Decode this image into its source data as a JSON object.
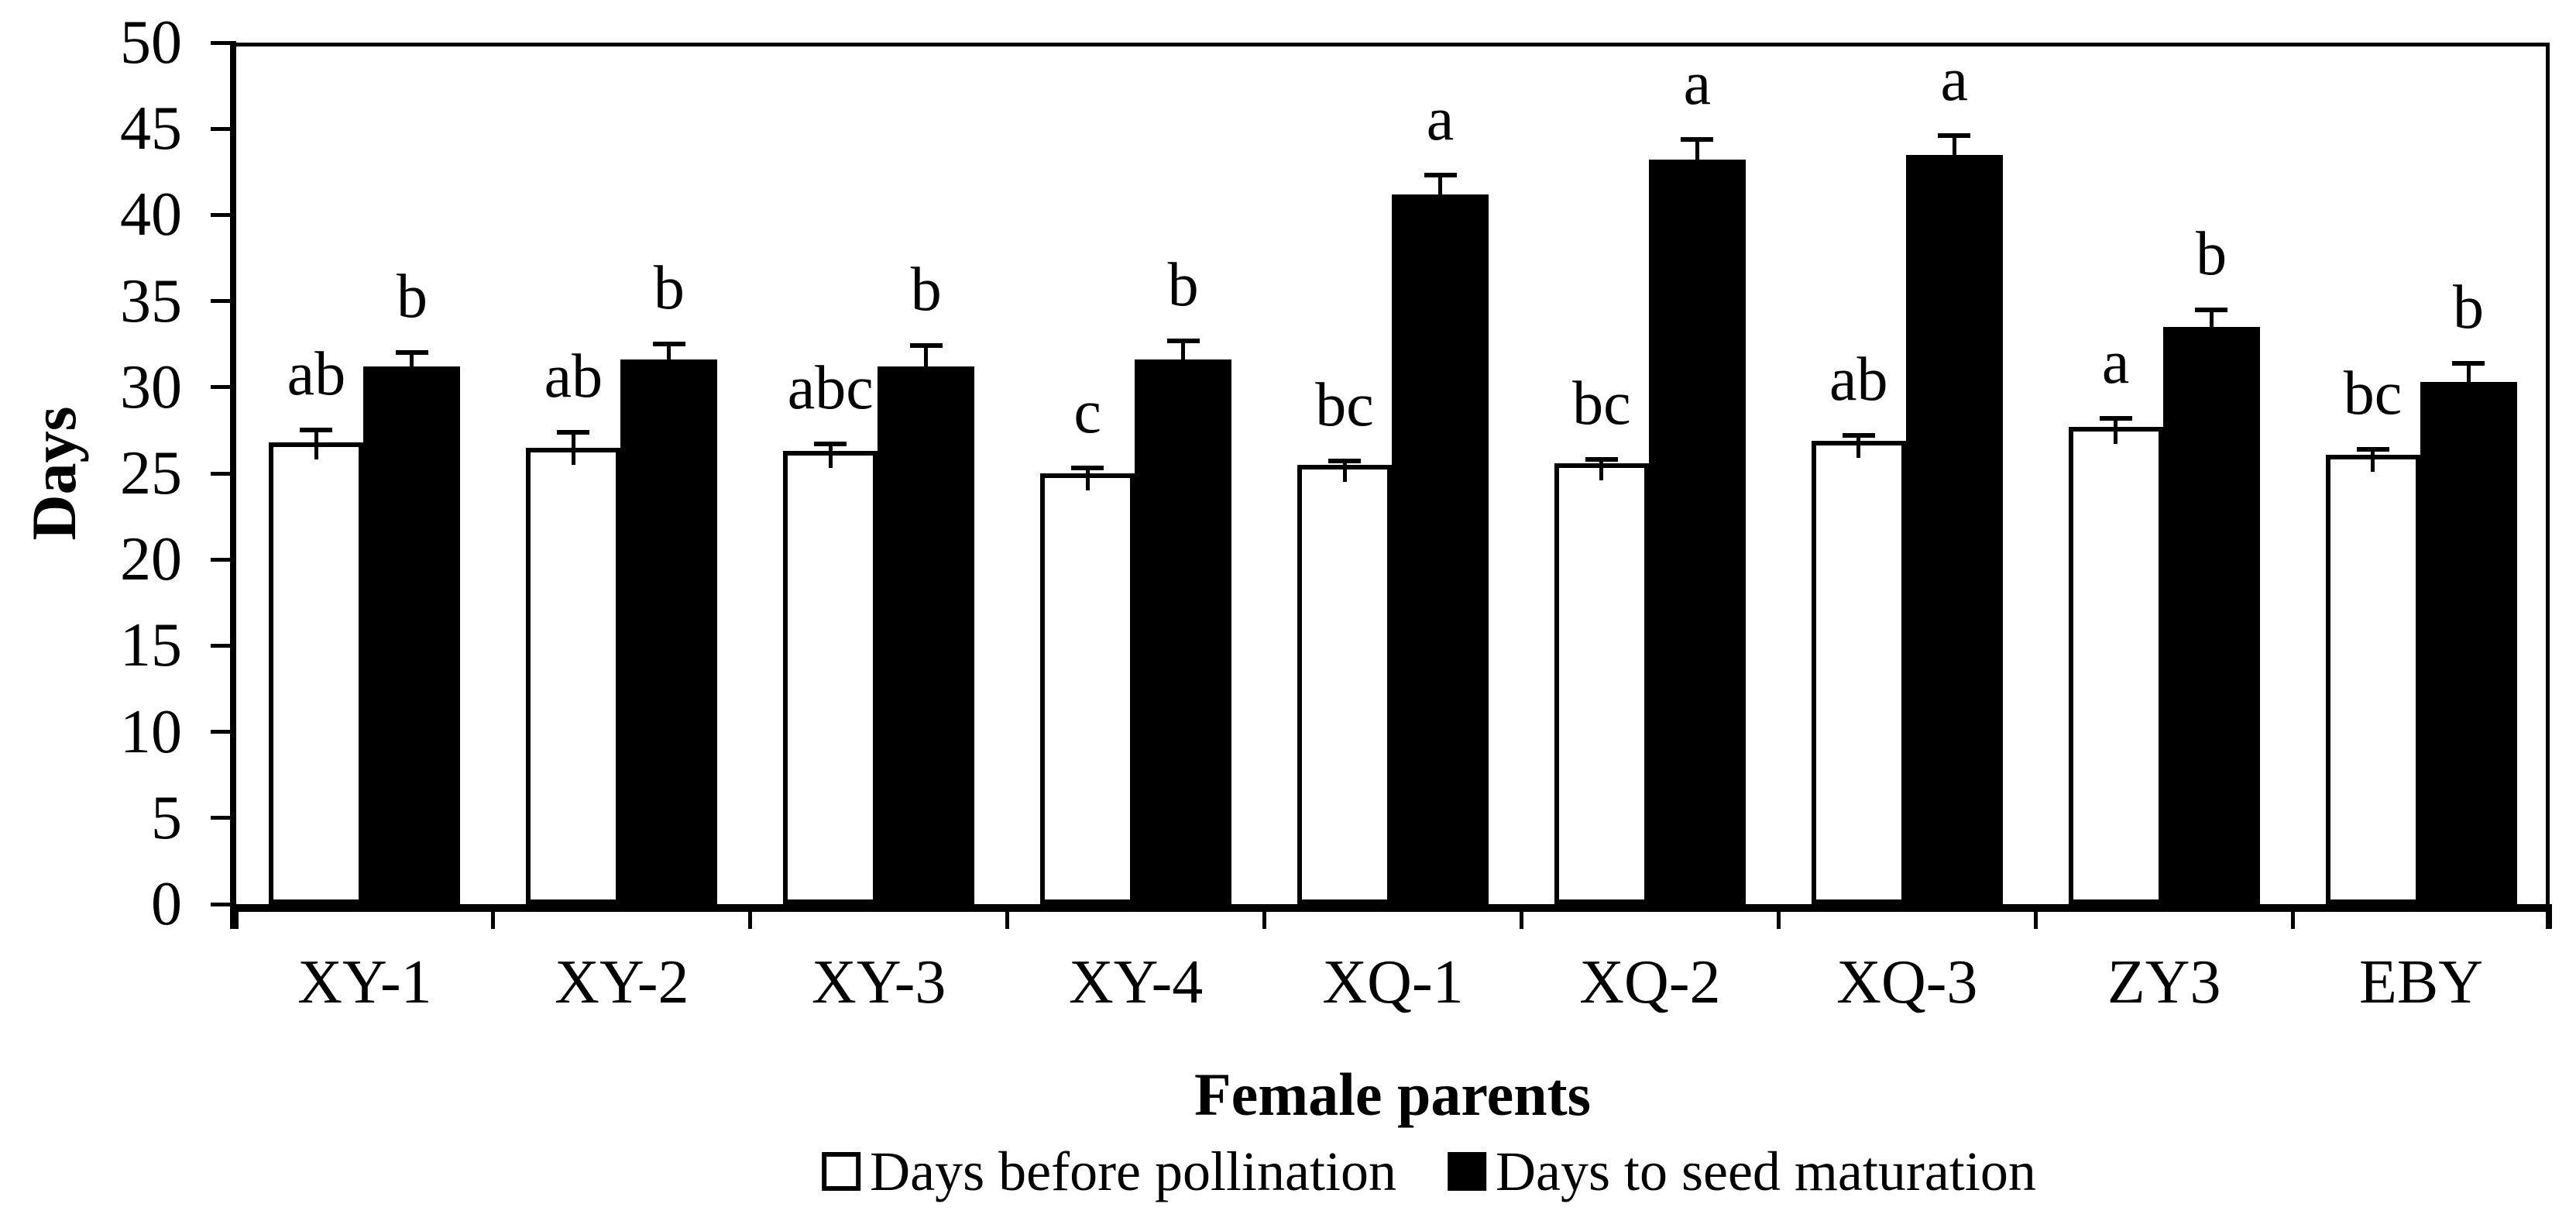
{
  "chart_data": {
    "type": "bar",
    "title": "",
    "xlabel": "Female parents",
    "ylabel": "Days",
    "categories": [
      "XY-1",
      "XY-2",
      "XY-3",
      "XY-4",
      "XQ-1",
      "XQ-2",
      "XQ-3",
      "ZY3",
      "EBY"
    ],
    "series": [
      {
        "name": "Days before pollination",
        "fill": "#ffffff",
        "values": [
          26.8,
          26.5,
          26.3,
          25.0,
          25.5,
          25.6,
          26.9,
          27.7,
          26.1
        ],
        "errors": [
          0.7,
          0.9,
          0.4,
          0.3,
          0.2,
          0.2,
          0.3,
          0.5,
          0.3
        ],
        "letters": [
          "ab",
          "ab",
          "abc",
          "c",
          "bc",
          "bc",
          "ab",
          "a",
          "bc"
        ]
      },
      {
        "name": "Days to seed maturation",
        "fill": "#000000",
        "values": [
          31.2,
          31.6,
          31.2,
          31.6,
          41.2,
          43.2,
          43.5,
          33.5,
          30.3
        ],
        "errors": [
          0.8,
          0.9,
          1.2,
          1.1,
          1.1,
          1.2,
          1.1,
          1.0,
          1.1
        ],
        "letters": [
          "b",
          "b",
          "b",
          "b",
          "a",
          "a",
          "a",
          "b",
          "b"
        ]
      }
    ],
    "ylim": [
      0,
      50
    ],
    "yticks": [
      0,
      5,
      10,
      15,
      20,
      25,
      30,
      35,
      40,
      45,
      50
    ],
    "grid": false,
    "legend_position": "bottom",
    "error_bars": true,
    "frame": true,
    "bar_color_outline": "#000000",
    "background": "#ffffff"
  }
}
